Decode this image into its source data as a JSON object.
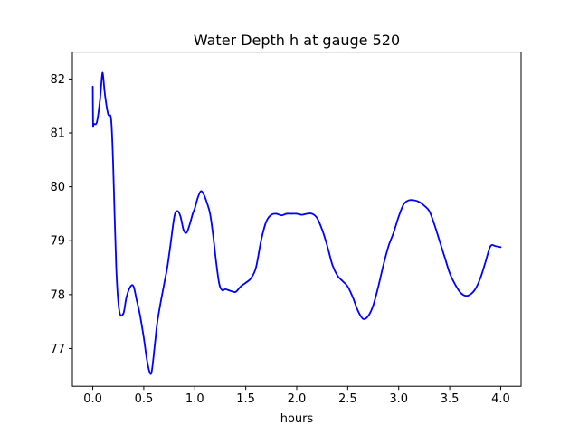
{
  "chart_data": {
    "type": "line",
    "title": "Water Depth h at gauge 520",
    "xlabel": "hours",
    "ylabel": "",
    "xlim": [
      -0.2,
      4.2
    ],
    "ylim": [
      76.3,
      82.5
    ],
    "xticks": [
      0.0,
      0.5,
      1.0,
      1.5,
      2.0,
      2.5,
      3.0,
      3.5,
      4.0
    ],
    "xtick_labels": [
      "0.0",
      "0.5",
      "1.0",
      "1.5",
      "2.0",
      "2.5",
      "3.0",
      "3.5",
      "4.0"
    ],
    "yticks": [
      77,
      78,
      79,
      80,
      81,
      82
    ],
    "ytick_labels": [
      "77",
      "78",
      "79",
      "80",
      "81",
      "82"
    ],
    "grid": false,
    "legend": "none",
    "series": [
      {
        "color": "#0000ff",
        "x": [
          0.0,
          0.003,
          0.01,
          0.04,
          0.07,
          0.09,
          0.1,
          0.12,
          0.15,
          0.18,
          0.2,
          0.23,
          0.26,
          0.3,
          0.33,
          0.37,
          0.4,
          0.43,
          0.46,
          0.5,
          0.53,
          0.56,
          0.58,
          0.61,
          0.63,
          0.66,
          0.7,
          0.73,
          0.76,
          0.8,
          0.83,
          0.86,
          0.89,
          0.92,
          0.95,
          0.98,
          1.0,
          1.03,
          1.06,
          1.09,
          1.12,
          1.15,
          1.18,
          1.21,
          1.24,
          1.27,
          1.3,
          1.35,
          1.4,
          1.45,
          1.5,
          1.55,
          1.6,
          1.65,
          1.7,
          1.75,
          1.8,
          1.85,
          1.9,
          1.95,
          2.0,
          2.05,
          2.1,
          2.15,
          2.2,
          2.25,
          2.3,
          2.35,
          2.4,
          2.45,
          2.5,
          2.55,
          2.6,
          2.65,
          2.7,
          2.75,
          2.8,
          2.85,
          2.9,
          2.95,
          3.0,
          3.05,
          3.1,
          3.15,
          3.2,
          3.25,
          3.3,
          3.35,
          3.4,
          3.45,
          3.5,
          3.55,
          3.6,
          3.65,
          3.7,
          3.75,
          3.8,
          3.85,
          3.9,
          3.95,
          4.0
        ],
        "values": [
          81.86,
          81.16,
          81.17,
          81.2,
          81.6,
          82.05,
          82.08,
          81.7,
          81.35,
          81.25,
          80.4,
          78.5,
          77.7,
          77.65,
          77.95,
          78.15,
          78.15,
          77.9,
          77.65,
          77.2,
          76.8,
          76.55,
          76.6,
          77.1,
          77.45,
          77.8,
          78.2,
          78.5,
          78.9,
          79.45,
          79.55,
          79.45,
          79.2,
          79.15,
          79.3,
          79.5,
          79.6,
          79.8,
          79.92,
          79.85,
          79.7,
          79.5,
          79.1,
          78.6,
          78.2,
          78.08,
          78.1,
          78.07,
          78.05,
          78.15,
          78.22,
          78.3,
          78.5,
          79.0,
          79.35,
          79.48,
          79.5,
          79.47,
          79.5,
          79.5,
          79.5,
          79.48,
          79.5,
          79.5,
          79.42,
          79.2,
          78.9,
          78.55,
          78.35,
          78.25,
          78.15,
          77.95,
          77.7,
          77.55,
          77.6,
          77.8,
          78.15,
          78.55,
          78.9,
          79.15,
          79.45,
          79.68,
          79.75,
          79.75,
          79.72,
          79.65,
          79.55,
          79.3,
          79.0,
          78.7,
          78.4,
          78.2,
          78.05,
          77.98,
          78.0,
          78.1,
          78.3,
          78.6,
          78.9,
          78.9,
          78.88
        ]
      }
    ]
  }
}
